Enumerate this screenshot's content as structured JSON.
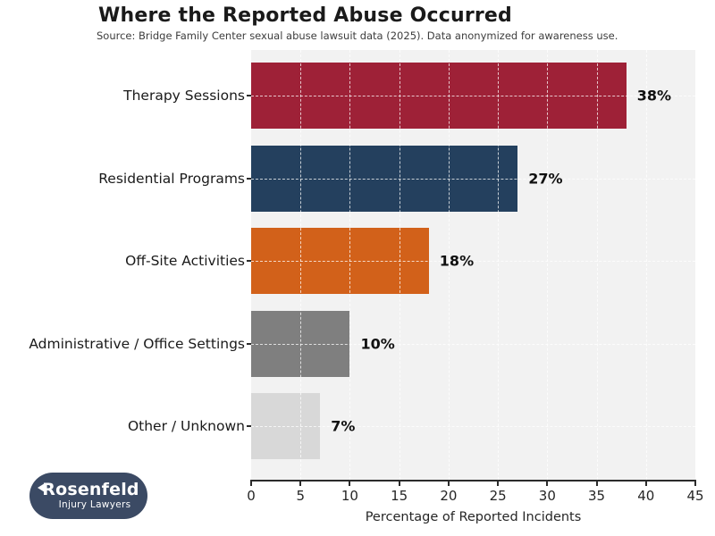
{
  "header": {
    "title": "Where the Reported Abuse Occurred",
    "subtitle": "Source: Bridge Family Center sexual abuse lawsuit data (2025). Data anonymized for awareness use."
  },
  "chart_data": {
    "type": "bar",
    "orientation": "horizontal",
    "title": "Where the Reported Abuse Occurred",
    "categories": [
      "Therapy Sessions",
      "Residential Programs",
      "Off-Site Activities",
      "Administrative / Office Settings",
      "Other / Unknown"
    ],
    "values": [
      38,
      27,
      18,
      10,
      7
    ],
    "value_labels": [
      "38%",
      "27%",
      "18%",
      "10%",
      "7%"
    ],
    "bar_colors": [
      "#9e2137",
      "#24405e",
      "#d2611a",
      "#7f7f7f",
      "#d8d8d8"
    ],
    "xlabel": "Percentage of Reported Incidents",
    "ylabel": "",
    "xlim": [
      0,
      45
    ],
    "xticks": [
      0,
      5,
      10,
      15,
      20,
      25,
      30,
      35,
      40,
      45
    ],
    "grid": true,
    "grid_style": "dashed",
    "legend": "none",
    "plot_bg": "#f2f2f2",
    "figure_bg": "#ffffff",
    "axis_color": "#2b2b2b"
  },
  "footer_logo": {
    "name": "Rosenfeld",
    "tagline": "Injury Lawyers",
    "bg_color": "#3b4a64"
  }
}
